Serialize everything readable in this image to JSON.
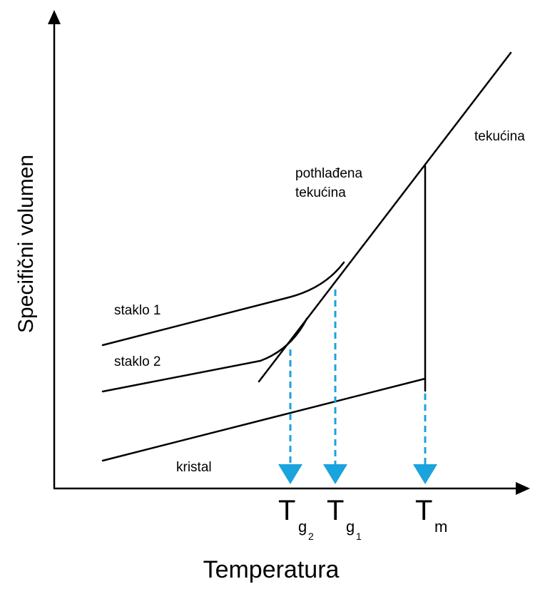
{
  "axes": {
    "x_label": "Temperatura",
    "y_label": "Specifični volumen"
  },
  "regions": {
    "liquid": "tekućina",
    "supercooled_line1": "pothlađena",
    "supercooled_line2": "tekućina",
    "glass1": "staklo 1",
    "glass2": "staklo 2",
    "crystal": "kristal"
  },
  "temperatures": {
    "tg2": {
      "main": "T",
      "sub": "g",
      "subsub": "2"
    },
    "tg1": {
      "main": "T",
      "sub": "g",
      "subsub": "1"
    },
    "tm": {
      "main": "T",
      "sub": "m"
    }
  },
  "colors": {
    "line": "#000000",
    "marker": "#1aa3dd"
  }
}
